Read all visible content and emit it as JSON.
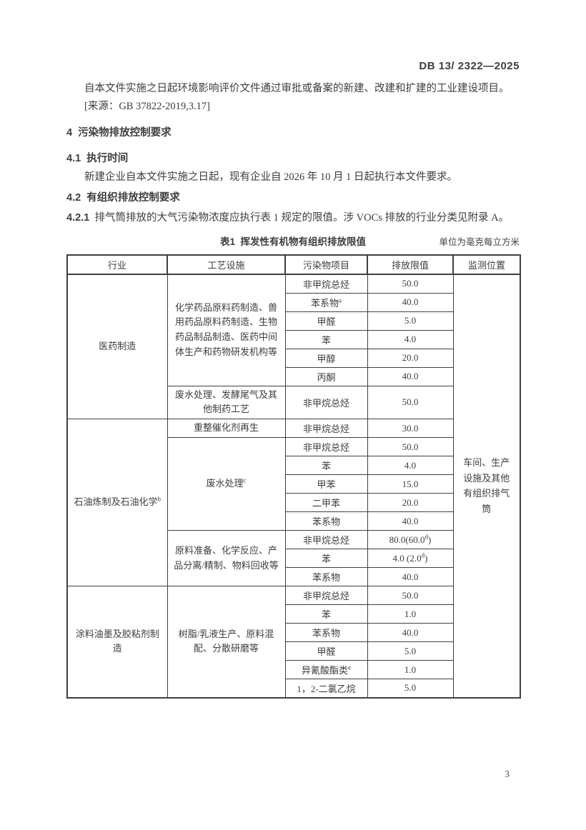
{
  "page": {
    "doc_number": "DB 13/ 2322—2025",
    "page_number": "3"
  },
  "colors": {
    "text": "#3d3d3d",
    "border": "#3f3f3f",
    "background": "#ffffff"
  },
  "intro": {
    "line1": "自本文件实施之日起环境影响评价文件通过审批或备案的新建、改建和扩建的工业建设项目。",
    "line2": "[来源：GB 37822-2019,3.17]"
  },
  "sections": {
    "h4": "4  污染物排放控制要求",
    "h41": "4.1  执行时间",
    "p41": "新建企业自本文件实施之日起，现有企业自 2026 年 10 月 1 日起执行本文件要求。",
    "h42": "4.2  有组织排放控制要求",
    "h421_num": "4.2.1",
    "h421_text": "排气筒排放的大气污染物浓度应执行表 1 规定的限值。涉 VOCs 排放的行业分类见附录 A。"
  },
  "table": {
    "title": "表1  挥发性有机物有组织排放限值",
    "unit_note": "单位为毫克每立方米",
    "headers": [
      "行业",
      "工艺设施",
      "污染物项目",
      "排放限值",
      "监测位置"
    ],
    "monitoring_location": "车间、生产设施及其他有组织排气筒",
    "industries": [
      {
        "name": "医药制造",
        "sup": "",
        "processes": [
          {
            "name": "化学药品原料药制造、兽用药品原料药制造、生物药品制品制造、医药中间体生产和药物研发机构等",
            "sup": "",
            "tall": false,
            "pollutants": [
              {
                "name": "非甲烷总烃",
                "sup": "",
                "limit": "50.0",
                "limit_sup": "",
                "limit_post": ""
              },
              {
                "name": "苯系物",
                "sup": "a",
                "limit": "40.0",
                "limit_sup": "",
                "limit_post": ""
              },
              {
                "name": "甲醛",
                "sup": "",
                "limit": "5.0",
                "limit_sup": "",
                "limit_post": ""
              },
              {
                "name": "苯",
                "sup": "",
                "limit": "4.0",
                "limit_sup": "",
                "limit_post": ""
              },
              {
                "name": "甲醇",
                "sup": "",
                "limit": "20.0",
                "limit_sup": "",
                "limit_post": ""
              },
              {
                "name": "丙酮",
                "sup": "",
                "limit": "40.0",
                "limit_sup": "",
                "limit_post": ""
              }
            ]
          },
          {
            "name": "废水处理、发酵尾气及其他制药工艺",
            "sup": "",
            "tall": true,
            "pollutants": [
              {
                "name": "非甲烷总烃",
                "sup": "",
                "limit": "50.0",
                "limit_sup": "",
                "limit_post": ""
              }
            ]
          }
        ]
      },
      {
        "name": "石油炼制及石油化学",
        "sup": "b",
        "processes": [
          {
            "name": "重整催化剂再生",
            "sup": "",
            "tall": false,
            "pollutants": [
              {
                "name": "非甲烷总烃",
                "sup": "",
                "limit": "30.0",
                "limit_sup": "",
                "limit_post": ""
              }
            ]
          },
          {
            "name": "废水处理",
            "sup": "c",
            "tall": false,
            "pollutants": [
              {
                "name": "非甲烷总烃",
                "sup": "",
                "limit": "50.0",
                "limit_sup": "",
                "limit_post": ""
              },
              {
                "name": "苯",
                "sup": "",
                "limit": "4.0",
                "limit_sup": "",
                "limit_post": ""
              },
              {
                "name": "甲苯",
                "sup": "",
                "limit": "15.0",
                "limit_sup": "",
                "limit_post": ""
              },
              {
                "name": "二甲苯",
                "sup": "",
                "limit": "20.0",
                "limit_sup": "",
                "limit_post": ""
              },
              {
                "name": "苯系物",
                "sup": "",
                "limit": "40.0",
                "limit_sup": "",
                "limit_post": ""
              }
            ]
          },
          {
            "name": "原料准备、化学反应、产品分离/精制、物料回收等",
            "sup": "",
            "tall": false,
            "pollutants": [
              {
                "name": "非甲烷总烃",
                "sup": "",
                "limit": "80.0(60.0",
                "limit_sup": "d",
                "limit_post": ")"
              },
              {
                "name": "苯",
                "sup": "",
                "limit": "4.0 (2.0",
                "limit_sup": "d",
                "limit_post": ")"
              },
              {
                "name": "苯系物",
                "sup": "",
                "limit": "40.0",
                "limit_sup": "",
                "limit_post": ""
              }
            ]
          }
        ]
      },
      {
        "name": "涂料油墨及胶粘剂制造",
        "sup": "",
        "processes": [
          {
            "name": "树脂/乳液生产、原料混配、分散研磨等",
            "sup": "",
            "tall": false,
            "pollutants": [
              {
                "name": "非甲烷总烃",
                "sup": "",
                "limit": "50.0",
                "limit_sup": "",
                "limit_post": ""
              },
              {
                "name": "苯",
                "sup": "",
                "limit": "1.0",
                "limit_sup": "",
                "limit_post": ""
              },
              {
                "name": "苯系物",
                "sup": "",
                "limit": "40.0",
                "limit_sup": "",
                "limit_post": ""
              },
              {
                "name": "甲醛",
                "sup": "",
                "limit": "5.0",
                "limit_sup": "",
                "limit_post": ""
              },
              {
                "name": "异氰酸酯类",
                "sup": "e",
                "limit": "1.0",
                "limit_sup": "",
                "limit_post": ""
              },
              {
                "name": "1，2-二氯乙烷",
                "sup": "",
                "limit": "5.0",
                "limit_sup": "",
                "limit_post": ""
              }
            ]
          }
        ]
      }
    ]
  }
}
